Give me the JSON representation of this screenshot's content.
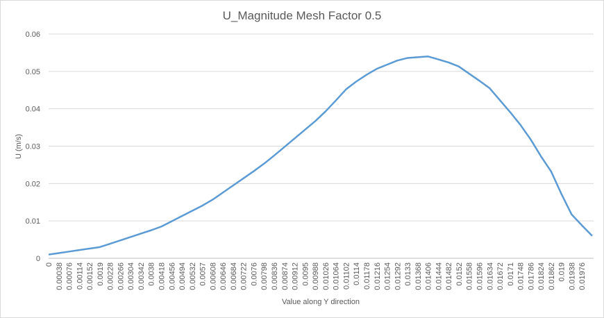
{
  "chart_data": {
    "type": "line",
    "title": "U_Magnitude Mesh Factor 0.5",
    "x_label": "Value along Y direction",
    "y_label": "U (m/s)",
    "categories": [
      "0",
      "0.00038",
      "0.00076",
      "0.00114",
      "0.00152",
      "0.0019",
      "0.00228",
      "0.00266",
      "0.00304",
      "0.00342",
      "0.0038",
      "0.00418",
      "0.00456",
      "0.00494",
      "0.00532",
      "0.0057",
      "0.00608",
      "0.00646",
      "0.00684",
      "0.00722",
      "0.0076",
      "0.00798",
      "0.00836",
      "0.00874",
      "0.00912",
      "0.0095",
      "0.00988",
      "0.01026",
      "0.01064",
      "0.01102",
      "0.0114",
      "0.01178",
      "0.01216",
      "0.01254",
      "0.01292",
      "0.0133",
      "0.01368",
      "0.01406",
      "0.01444",
      "0.01482",
      "0.0152",
      "0.01558",
      "0.01596",
      "0.01634",
      "0.01672",
      "0.0171",
      "0.01748",
      "0.01786",
      "0.01824",
      "0.01862",
      "0.019",
      "0.01938",
      "0.01976",
      null
    ],
    "series": [
      {
        "name": "U_Magnitude",
        "color": "#5b9bd5",
        "values": [
          0.001,
          0.0014,
          0.0018,
          0.0022,
          0.0026,
          0.003,
          0.0039,
          0.0048,
          0.0057,
          0.0066,
          0.0075,
          0.0085,
          0.0099,
          0.0113,
          0.0127,
          0.0141,
          0.0157,
          0.0176,
          0.0195,
          0.0214,
          0.0233,
          0.0253,
          0.0275,
          0.0298,
          0.0321,
          0.0344,
          0.0367,
          0.0393,
          0.0422,
          0.0452,
          0.0473,
          0.0491,
          0.0507,
          0.0518,
          0.0529,
          0.0536,
          0.0538,
          0.054,
          0.0532,
          0.0524,
          0.0513,
          0.0494,
          0.0475,
          0.0455,
          0.0423,
          0.0391,
          0.0357,
          0.0318,
          0.0273,
          0.0232,
          0.0172,
          0.0117,
          0.0088,
          0.006
        ]
      }
    ],
    "ylim": [
      0,
      0.06
    ],
    "yticks": [
      0,
      0.01,
      0.02,
      0.03,
      0.04,
      0.05,
      0.06
    ],
    "grid": true
  }
}
